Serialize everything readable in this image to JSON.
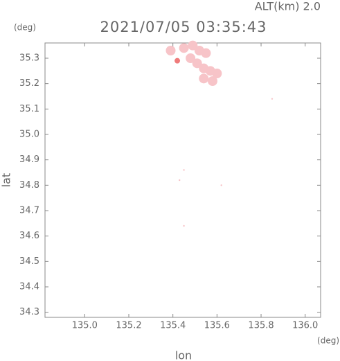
{
  "chart_data": {
    "type": "scatter",
    "title": "2021/07/05 03:35:43",
    "subtitle": "ALT(km) 2.0",
    "y_unit": "(deg)",
    "x_unit": "(deg)",
    "xlabel": "lon",
    "ylabel": "lat",
    "xlim": [
      134.82,
      136.07
    ],
    "ylim": [
      34.28,
      35.36
    ],
    "xticks": [
      {
        "value": 135.0,
        "label": "135.0"
      },
      135.2,
      135.4,
      135.6,
      135.8,
      {
        "value": 136.0,
        "label": "136.0"
      }
    ],
    "yticks": [
      34.3,
      34.4,
      34.5,
      34.6,
      34.7,
      34.8,
      34.9,
      {
        "value": 35.0,
        "label": "35.0"
      },
      35.1,
      35.2,
      35.3
    ],
    "series": [
      {
        "color": "#f7c4c8",
        "x": [
          135.39,
          135.45,
          135.49,
          135.52,
          135.55,
          135.48,
          135.51,
          135.54,
          135.57,
          135.6,
          135.58,
          135.54,
          135.85,
          135.45,
          135.43,
          135.62,
          135.45
        ],
        "values": [
          35.33,
          35.34,
          35.35,
          35.33,
          35.32,
          35.3,
          35.28,
          35.26,
          35.25,
          35.24,
          35.21,
          35.22,
          35.14,
          34.86,
          34.82,
          34.8,
          34.64
        ]
      },
      {
        "color": "#ef7b7b",
        "x": [
          135.42
        ],
        "values": [
          35.29
        ]
      }
    ]
  }
}
